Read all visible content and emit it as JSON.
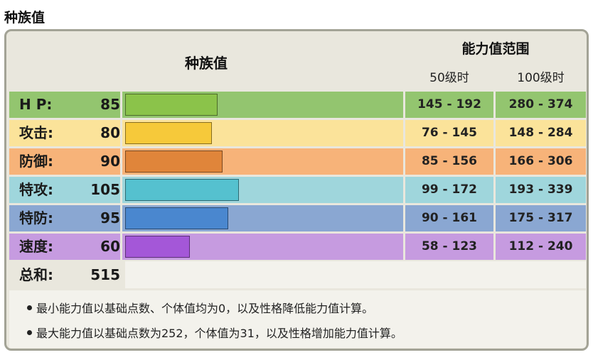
{
  "page_title": "种族值",
  "header": {
    "base_stats": "种族值",
    "stat_range": "能力值范围",
    "level_50": "50级时",
    "level_100": "100级时"
  },
  "stats": [
    {
      "label": "H P:",
      "value": "85",
      "range_50": "145 - 192",
      "range_100": "280 - 374",
      "row_color": "#93c56f",
      "bar_color": "#8bc34a",
      "bar_fraction": 0.336
    },
    {
      "label": "攻击:",
      "value": "80",
      "range_50": "76 - 145",
      "range_100": "148 - 284",
      "row_color": "#fbe39a",
      "bar_color": "#f6c93a",
      "bar_fraction": 0.316
    },
    {
      "label": "防御:",
      "value": "90",
      "range_50": "85 - 156",
      "range_100": "166 - 306",
      "row_color": "#f7b379",
      "bar_color": "#e0853a",
      "bar_fraction": 0.356
    },
    {
      "label": "特攻:",
      "value": "105",
      "range_50": "99 - 172",
      "range_100": "193 - 339",
      "row_color": "#9fd6dc",
      "bar_color": "#55c1cf",
      "bar_fraction": 0.415
    },
    {
      "label": "特防:",
      "value": "95",
      "range_50": "90 - 161",
      "range_100": "175 - 317",
      "row_color": "#8aa7d2",
      "bar_color": "#4a87cf",
      "bar_fraction": 0.375
    },
    {
      "label": "速度:",
      "value": "60",
      "range_50": "58 - 123",
      "range_100": "112 - 240",
      "row_color": "#c69be0",
      "bar_color": "#a457d8",
      "bar_fraction": 0.237
    }
  ],
  "total": {
    "label": "总和:",
    "value": "515"
  },
  "notes": [
    "最小能力值以基础点数、个体值均为0，以及性格降低能力值计算。",
    "最大能力值以基础点数为252，个体值为31，以及性格增加能力值计算。"
  ]
}
